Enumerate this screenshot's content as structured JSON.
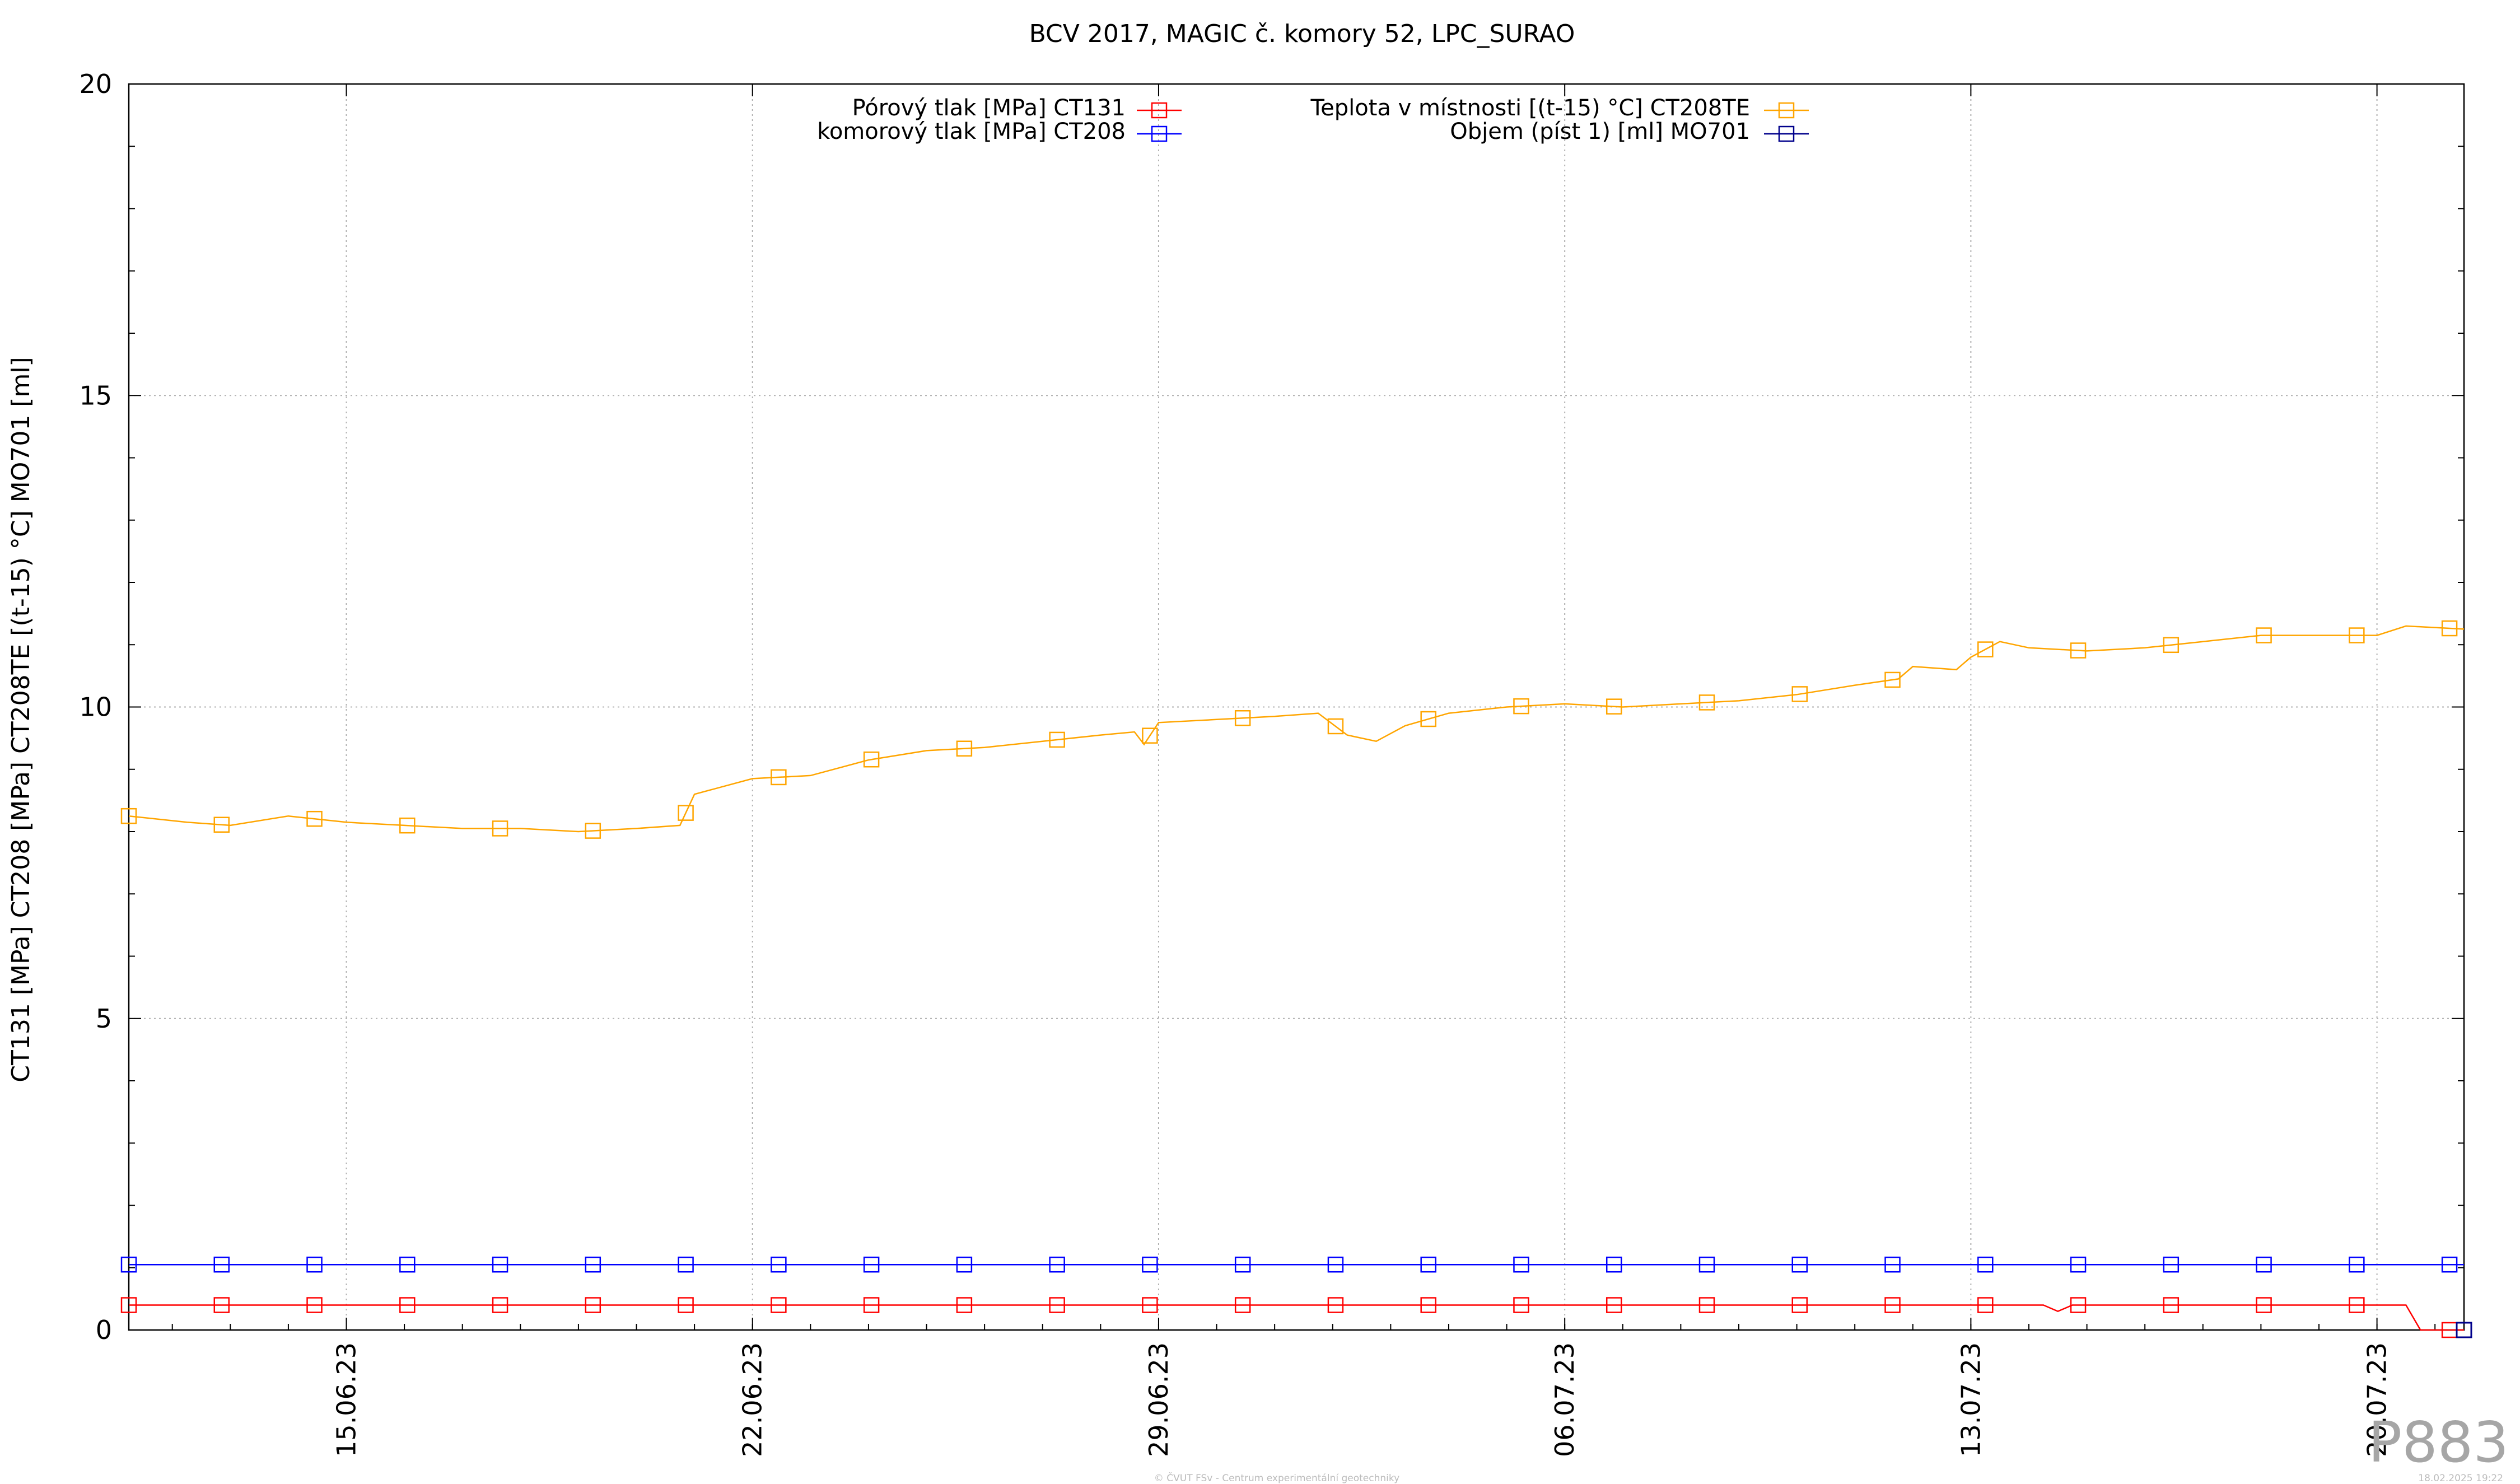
{
  "chart_data": {
    "type": "line",
    "title": "BCV 2017, MAGIC č. komory 52, LPC_SURAO",
    "ylabel": "CT131 [MPa] CT208 [MPa] CT208TE [(t-15) °C] MO701 [ml]",
    "xlabel": "",
    "ylim": [
      0,
      20
    ],
    "yticks": [
      0,
      5,
      10,
      15,
      20
    ],
    "xlim": [
      "2023-06-11 06:00",
      "2023-07-21 12:00"
    ],
    "xticks": [
      "15.06.23",
      "22.06.23",
      "29.06.23",
      "06.07.23",
      "13.07.23",
      "20.07.23"
    ],
    "grid": true,
    "legend_placement": "top-center",
    "series": [
      {
        "name": "Pórový tlak [MPa] CT131",
        "color": "#ff0000",
        "points": [
          [
            "2023-06-11 06:00",
            0.4
          ],
          [
            "2023-06-12 06:00",
            0.4
          ],
          [
            "2023-06-20 00:00",
            0.4
          ],
          [
            "2023-07-14 06:00",
            0.4
          ],
          [
            "2023-07-14 12:00",
            0.3
          ],
          [
            "2023-07-14 18:00",
            0.4
          ],
          [
            "2023-07-20 12:00",
            0.4
          ],
          [
            "2023-07-20 18:00",
            0.0
          ],
          [
            "2023-07-21 12:00",
            0.0
          ]
        ]
      },
      {
        "name": "komorový tlak [MPa] CT208",
        "color": "#0000ff",
        "points": [
          [
            "2023-06-11 06:00",
            1.05
          ],
          [
            "2023-07-21 12:00",
            1.05
          ]
        ]
      },
      {
        "name": "Teplota v místnosti [(t-15) °C] CT208TE",
        "color": "#ffa500",
        "points": [
          [
            "2023-06-11 06:00",
            8.25
          ],
          [
            "2023-06-12 06:00",
            8.15
          ],
          [
            "2023-06-13 00:00",
            8.1
          ],
          [
            "2023-06-14 00:00",
            8.25
          ],
          [
            "2023-06-15 00:00",
            8.15
          ],
          [
            "2023-06-16 00:00",
            8.1
          ],
          [
            "2023-06-17 00:00",
            8.05
          ],
          [
            "2023-06-18 00:00",
            8.05
          ],
          [
            "2023-06-19 00:00",
            8.0
          ],
          [
            "2023-06-20 00:00",
            8.05
          ],
          [
            "2023-06-20 18:00",
            8.1
          ],
          [
            "2023-06-21 00:00",
            8.6
          ],
          [
            "2023-06-22 00:00",
            8.85
          ],
          [
            "2023-06-23 00:00",
            8.9
          ],
          [
            "2023-06-24 00:00",
            9.15
          ],
          [
            "2023-06-25 00:00",
            9.3
          ],
          [
            "2023-06-26 00:00",
            9.35
          ],
          [
            "2023-06-27 00:00",
            9.45
          ],
          [
            "2023-06-28 00:00",
            9.55
          ],
          [
            "2023-06-28 14:00",
            9.6
          ],
          [
            "2023-06-28 18:00",
            9.4
          ],
          [
            "2023-06-29 00:00",
            9.75
          ],
          [
            "2023-06-30 00:00",
            9.8
          ],
          [
            "2023-07-01 00:00",
            9.85
          ],
          [
            "2023-07-01 18:00",
            9.9
          ],
          [
            "2023-07-02 06:00",
            9.55
          ],
          [
            "2023-07-02 18:00",
            9.45
          ],
          [
            "2023-07-03 06:00",
            9.7
          ],
          [
            "2023-07-04 00:00",
            9.9
          ],
          [
            "2023-07-05 00:00",
            10.0
          ],
          [
            "2023-07-06 00:00",
            10.05
          ],
          [
            "2023-07-07 00:00",
            10.0
          ],
          [
            "2023-07-08 00:00",
            10.05
          ],
          [
            "2023-07-09 00:00",
            10.1
          ],
          [
            "2023-07-10 00:00",
            10.2
          ],
          [
            "2023-07-11 00:00",
            10.35
          ],
          [
            "2023-07-11 18:00",
            10.45
          ],
          [
            "2023-07-12 00:00",
            10.65
          ],
          [
            "2023-07-12 18:00",
            10.6
          ],
          [
            "2023-07-13 00:00",
            10.8
          ],
          [
            "2023-07-13 12:00",
            11.05
          ],
          [
            "2023-07-14 00:00",
            10.95
          ],
          [
            "2023-07-15 00:00",
            10.9
          ],
          [
            "2023-07-16 00:00",
            10.95
          ],
          [
            "2023-07-17 00:00",
            11.05
          ],
          [
            "2023-07-18 00:00",
            11.15
          ],
          [
            "2023-07-19 00:00",
            11.15
          ],
          [
            "2023-07-20 00:00",
            11.15
          ],
          [
            "2023-07-20 12:00",
            11.3
          ],
          [
            "2023-07-21 12:00",
            11.25
          ]
        ]
      },
      {
        "name": "Objem (píst 1) [ml] MO701",
        "color": "#00008b",
        "points": [
          [
            "2023-07-21 12:00",
            0.0
          ]
        ]
      }
    ],
    "annotations": {
      "corner_id": "P883",
      "footer_left": "© ČVUT FSv - Centrum experimentální geotechniky",
      "footer_right": "18.02.2025 19:22"
    }
  }
}
